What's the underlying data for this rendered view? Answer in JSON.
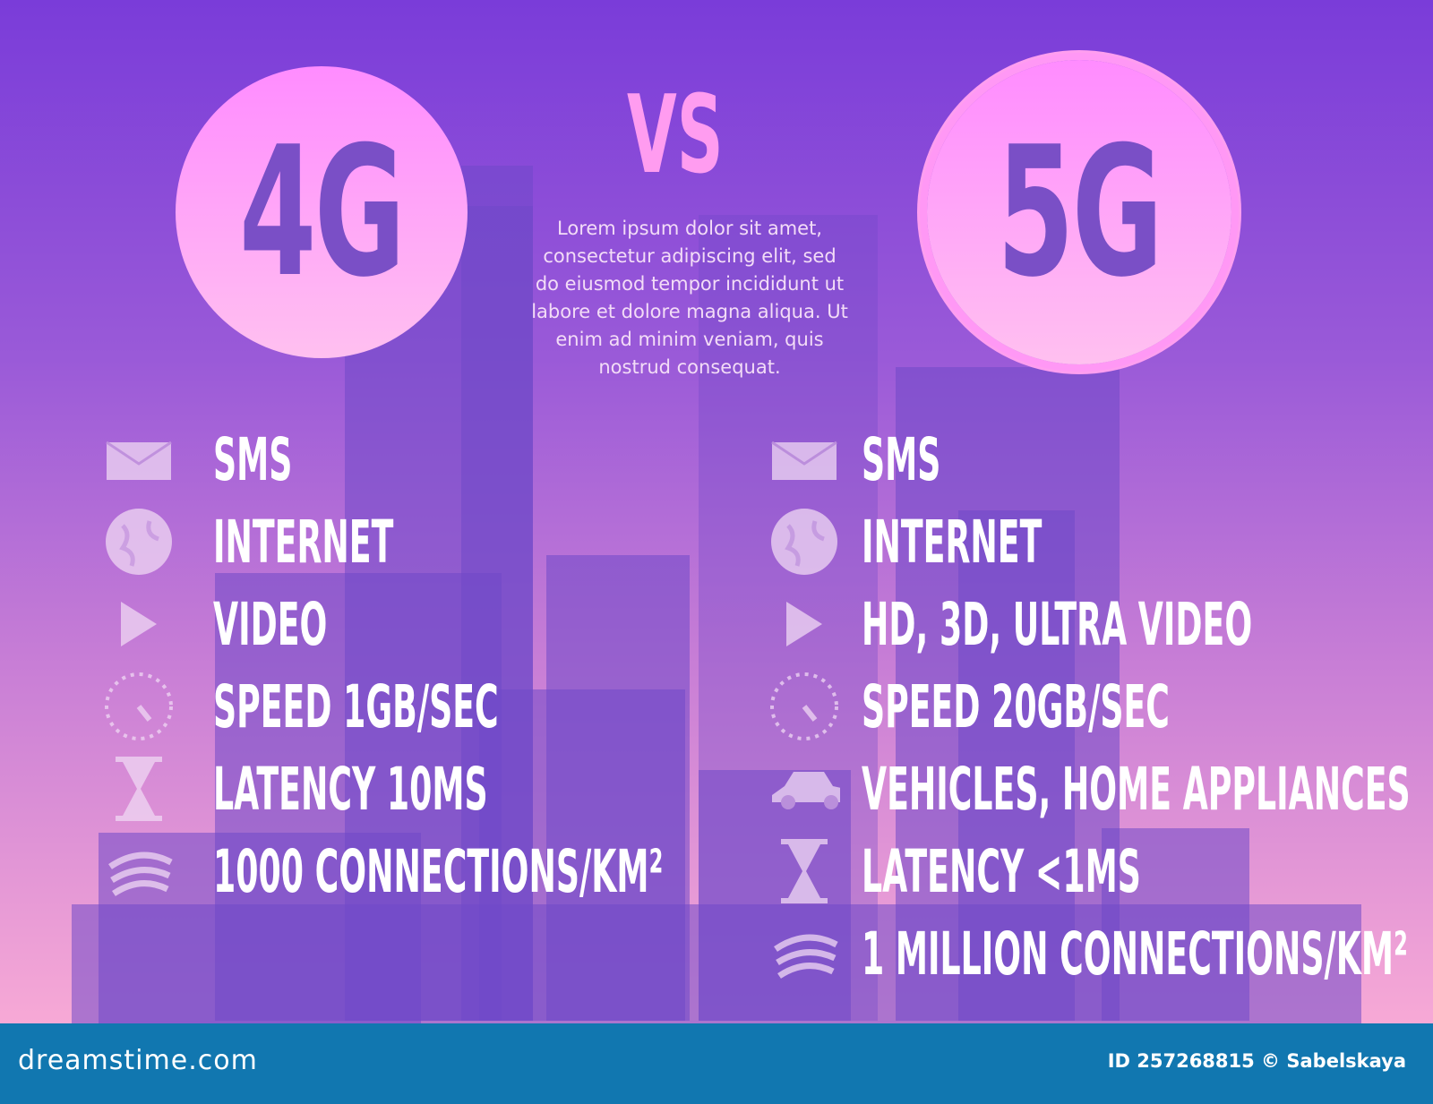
{
  "header": {
    "left_label": "4G",
    "vs_label": "VS",
    "right_label": "5G"
  },
  "description": "Lorem ipsum dolor sit amet, consectetur adipiscing elit, sed do eiusmod tempor incididunt ut labore et dolore magna aliqua. Ut enim ad minim veniam, quis nostrud consequat.",
  "left_features": [
    {
      "icon": "envelope-icon",
      "label": "SMS"
    },
    {
      "icon": "globe-icon",
      "label": "INTERNET"
    },
    {
      "icon": "play-icon",
      "label": "VIDEO"
    },
    {
      "icon": "speedometer-icon",
      "label": "SPEED 1GB/SEC"
    },
    {
      "icon": "hourglass-icon",
      "label": "LATENCY 10MS"
    },
    {
      "icon": "signal-icon",
      "label": "1000 CONNECTIONS/KM²"
    }
  ],
  "right_features": [
    {
      "icon": "envelope-icon",
      "label": "SMS"
    },
    {
      "icon": "globe-icon",
      "label": "INTERNET"
    },
    {
      "icon": "play-icon",
      "label": "HD, 3D, ULTRA VIDEO"
    },
    {
      "icon": "speedometer-icon",
      "label": "SPEED 20GB/SEC"
    },
    {
      "icon": "car-icon",
      "label": "VEHICLES, HOME APPLIANCES"
    },
    {
      "icon": "hourglass-icon",
      "label": "LATENCY <1MS"
    },
    {
      "icon": "signal-icon",
      "label": "1 MILLION CONNECTIONS/KM²"
    }
  ],
  "footer": {
    "logo": "dreamstime.com",
    "credit": "ID 257268815 © Sabelskaya"
  },
  "colors": {
    "footer": "#1177b0",
    "circle": "#ff8cff",
    "text": "#ffffff"
  }
}
